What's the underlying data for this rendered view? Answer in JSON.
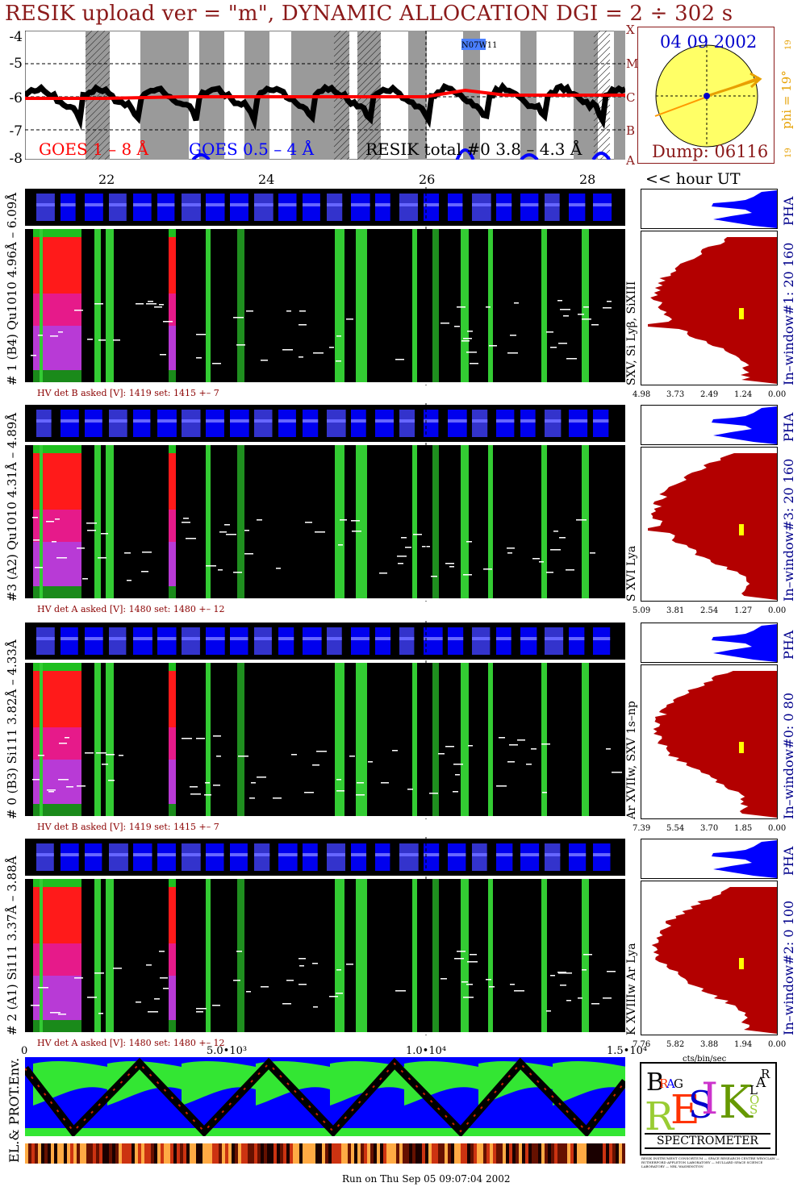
{
  "title": "RESIK upload ver = \"m\", DYNAMIC ALLOCATION  DGI =   2 ÷ 302 s",
  "goes_panel": {
    "y_ticks": [
      "-4",
      "-5",
      "-6",
      "-7",
      "-8"
    ],
    "class_labels": [
      "X",
      "M",
      "C",
      "B",
      "A"
    ],
    "legend": {
      "goes_long": "GOES 1 – 8 Å",
      "goes_short": "GOES 0.5 – 4 Å",
      "resik_total": "RESIK total #0  3.8 – 4.3 Å"
    },
    "flare_tag": "N07W11",
    "x_ticks": [
      "22",
      "24",
      "26",
      "28"
    ],
    "hour_label": "<< hour UT",
    "colors": {
      "goes_long": "#ff0000",
      "goes_short": "#0000ff",
      "resik": "#000000",
      "night_band": "#9a9a9a"
    }
  },
  "sun_panel": {
    "date": "04 09 2002",
    "phi": "phi = 19°",
    "phi_top": "19",
    "phi_bottom": "19",
    "dump": "Dump: 06116"
  },
  "channels": [
    {
      "label": "# 1 (B4) Qu1010 4.96Å – 6.09Å",
      "lines": "SXV, Si Lyβ, SiXIII",
      "window": "In–window#1:   20 160",
      "pha": "PHA",
      "hv": "HV det B asked [V]:  1419  set:   1415  +–    7",
      "spectrum_ticks": [
        "4.98",
        "3.73",
        "2.49",
        "1.24",
        "0.00"
      ]
    },
    {
      "label": "#3 (A2) Qu1010  4.31Å – 4.89Å",
      "lines": "S XVI Lya",
      "window": "In–window#3:   20 160",
      "pha": "PHA",
      "hv": "HV det A asked [V]:  1480  set:   1480  +–    12",
      "spectrum_ticks": [
        "5.09",
        "3.81",
        "2.54",
        "1.27",
        "0.00"
      ]
    },
    {
      "label": "# 0 (B3) Si111  3.82Å – 4.33Å",
      "lines": "Ar XVIIw,  SXV 1s–np",
      "window": "In–window#0:   0  80",
      "pha": "PHA",
      "hv": "HV det B asked [V]:  1419  set:   1415  +–    7",
      "spectrum_ticks": [
        "7.39",
        "5.54",
        "3.70",
        "1.85",
        "0.00"
      ]
    },
    {
      "label": "# 2 (A1) Si111  3.37Å – 3.88Å",
      "lines": "K XVIIIw  Ar Lya",
      "window": "In–window#2:   0 100",
      "pha": "PHA",
      "hv": "HV det A asked [V]:  1480  set:   1480  +–   12",
      "spectrum_ticks": [
        "7.76",
        "5.82",
        "3.88",
        "1.94",
        "0.00"
      ]
    }
  ],
  "env_panel": {
    "label": "EL.& PROT.Env.",
    "x_ticks": [
      "0",
      "5.0•10³",
      "1.0•10⁴",
      "1.5•10⁴"
    ],
    "unit": "cts/bin/sec"
  },
  "logo": {
    "letters": [
      "B",
      "R",
      "A",
      "G",
      "R",
      "E",
      "S",
      "I",
      "K",
      "S",
      "O",
      "L",
      "A",
      "R"
    ],
    "caption": "SPECTROMETER",
    "fine_print": "RESIK INSTRUMENT CONSORTIUM — SPACE RESEARCH CENTRE WROCLAW — RUTHERFORD APPLETON LABORATORY — MULLARD SPACE SCIENCE LABORATORY — NRL WASHINGTON"
  },
  "footer": "Run on Thu Sep 05 09:07:04 2002",
  "chart_data": [
    {
      "type": "line",
      "x_ticks": [
        "22",
        "24",
        "26",
        "28"
      ],
      "ylim": [
        -8,
        -4
      ],
      "y_ticks": [
        -4,
        -5,
        -6,
        -7,
        -8
      ],
      "log_scale": true,
      "series": [
        {
          "name": "GOES 1 – 8 Å",
          "x": [
            21,
            22,
            23,
            24,
            25,
            26,
            26.5,
            27,
            28,
            28.5
          ],
          "y": [
            -6.1,
            -6.1,
            -6.05,
            -6.05,
            -6.05,
            -6.05,
            -5.85,
            -6.0,
            -6.0,
            -6.0
          ]
        },
        {
          "name": "GOES 0.5 – 4 Å",
          "x": [
            23.2,
            26.5,
            27.3,
            28.2
          ],
          "y": [
            -7.9,
            -7.6,
            -7.9,
            -7.8
          ]
        }
      ],
      "annotations": [
        "N07W11"
      ]
    },
    {
      "type": "heatmap",
      "name": "# 1 (B4) Qu1010 4.96Å – 6.09Å",
      "xlim_hours": [
        21,
        28.5
      ]
    },
    {
      "type": "heatmap",
      "name": "#3 (A2) Qu1010  4.31Å – 4.89Å",
      "xlim_hours": [
        21,
        28.5
      ]
    },
    {
      "type": "heatmap",
      "name": "# 0 (B3) Si111  3.82Å – 4.33Å",
      "xlim_hours": [
        21,
        28.5
      ]
    },
    {
      "type": "heatmap",
      "name": "# 2 (A1) Si111  3.37Å – 3.88Å",
      "xlim_hours": [
        21,
        28.5
      ]
    },
    {
      "type": "area",
      "x_ticks": [
        "0",
        "5.0•10³",
        "1.0•10⁴",
        "1.5•10⁴"
      ],
      "xlim": [
        0,
        15000
      ]
    }
  ]
}
